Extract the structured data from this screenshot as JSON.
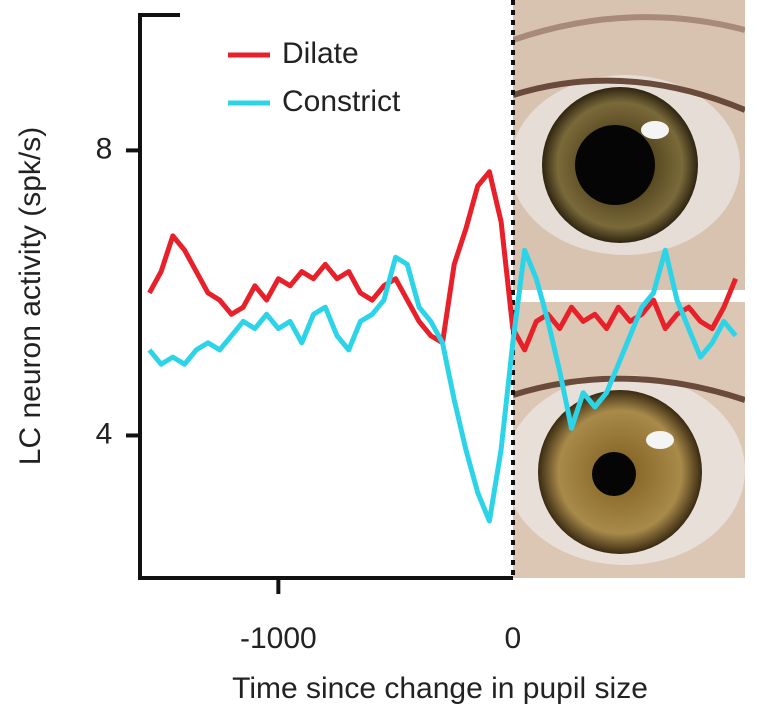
{
  "chart_data": {
    "type": "line",
    "x_label": "Time since change in pupil size",
    "y_label": "LC neuron activity (spk/s)",
    "x": [
      -1550,
      -1500,
      -1450,
      -1400,
      -1350,
      -1300,
      -1250,
      -1200,
      -1150,
      -1100,
      -1050,
      -1000,
      -950,
      -900,
      -850,
      -800,
      -750,
      -700,
      -650,
      -600,
      -550,
      -500,
      -450,
      -400,
      -350,
      -300,
      -250,
      -200,
      -150,
      -100,
      -50,
      0,
      50,
      100,
      150,
      200,
      250,
      300,
      350,
      400,
      450,
      500,
      550,
      600,
      650,
      700,
      750,
      800,
      850,
      900,
      950
    ],
    "series": [
      {
        "name": "Dilate",
        "color": "#e8202a",
        "values": [
          6.0,
          6.3,
          6.8,
          6.6,
          6.3,
          6.0,
          5.9,
          5.7,
          5.8,
          6.1,
          5.9,
          6.2,
          6.1,
          6.3,
          6.2,
          6.4,
          6.2,
          6.3,
          6.0,
          5.9,
          6.1,
          6.2,
          5.9,
          5.6,
          5.4,
          5.3,
          6.4,
          6.9,
          7.5,
          7.7,
          7.0,
          5.5,
          5.2,
          5.6,
          5.7,
          5.5,
          5.8,
          5.6,
          5.7,
          5.5,
          5.8,
          5.6,
          5.7,
          5.9,
          5.5,
          5.7,
          5.8,
          5.6,
          5.5,
          5.8,
          6.2
        ]
      },
      {
        "name": "Constrict",
        "color": "#2dd4e8",
        "values": [
          5.2,
          5.0,
          5.1,
          5.0,
          5.2,
          5.3,
          5.2,
          5.4,
          5.6,
          5.5,
          5.7,
          5.5,
          5.6,
          5.3,
          5.7,
          5.8,
          5.4,
          5.2,
          5.6,
          5.7,
          5.9,
          6.5,
          6.4,
          5.8,
          5.6,
          5.3,
          4.5,
          3.8,
          3.2,
          2.8,
          3.8,
          5.3,
          6.6,
          6.2,
          5.6,
          4.9,
          4.1,
          4.6,
          4.4,
          4.6,
          5.0,
          5.4,
          5.8,
          6.0,
          6.6,
          5.9,
          5.5,
          5.1,
          5.3,
          5.6,
          5.4
        ]
      }
    ],
    "xlim": [
      -1590,
      990
    ],
    "xticks": [
      -1000,
      0
    ],
    "ylim": [
      2,
      9.9
    ],
    "yticks": [
      4,
      8
    ]
  }
}
